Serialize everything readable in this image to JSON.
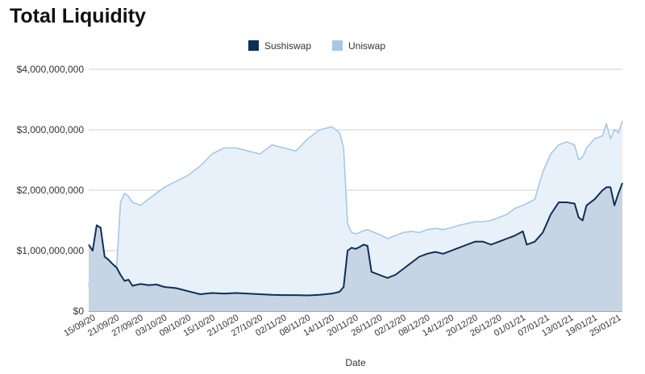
{
  "chart_data": {
    "type": "area",
    "title": "Total Liquidity",
    "xlabel": "Date",
    "ylabel": "",
    "ylim": [
      0,
      4000000000
    ],
    "yticks": [
      "$0",
      "$1,000,000,000",
      "$2,000,000,000",
      "$3,000,000,000",
      "$4,000,000,000"
    ],
    "grid": true,
    "legend": "top-center",
    "x_tick_labels": [
      "15/09/20",
      "21/09/20",
      "27/09/20",
      "03/10/20",
      "09/10/20",
      "15/10/20",
      "21/10/20",
      "27/10/20",
      "02/11/20",
      "08/11/20",
      "14/11/20",
      "20/11/20",
      "26/11/20",
      "02/12/20",
      "08/12/20",
      "14/12/20",
      "20/12/20",
      "26/12/20",
      "01/01/21",
      "07/01/21",
      "13/01/21",
      "19/01/21",
      "25/01/21"
    ],
    "x_start": "2020-09-14",
    "x_end": "2021-01-26",
    "series": [
      {
        "name": "Sushiswap",
        "color": "#0d2f57",
        "fill": "#c6d4e3",
        "points": [
          [
            "2020-09-14",
            1100000000
          ],
          [
            "2020-09-15",
            1000000000
          ],
          [
            "2020-09-16",
            1420000000
          ],
          [
            "2020-09-17",
            1380000000
          ],
          [
            "2020-09-18",
            900000000
          ],
          [
            "2020-09-19",
            850000000
          ],
          [
            "2020-09-20",
            780000000
          ],
          [
            "2020-09-21",
            720000000
          ],
          [
            "2020-09-22",
            600000000
          ],
          [
            "2020-09-23",
            500000000
          ],
          [
            "2020-09-24",
            520000000
          ],
          [
            "2020-09-25",
            420000000
          ],
          [
            "2020-09-27",
            450000000
          ],
          [
            "2020-09-29",
            430000000
          ],
          [
            "2020-10-01",
            440000000
          ],
          [
            "2020-10-03",
            400000000
          ],
          [
            "2020-10-06",
            380000000
          ],
          [
            "2020-10-09",
            330000000
          ],
          [
            "2020-10-12",
            280000000
          ],
          [
            "2020-10-15",
            300000000
          ],
          [
            "2020-10-18",
            290000000
          ],
          [
            "2020-10-21",
            300000000
          ],
          [
            "2020-10-24",
            290000000
          ],
          [
            "2020-10-27",
            280000000
          ],
          [
            "2020-10-30",
            270000000
          ],
          [
            "2020-11-02",
            265000000
          ],
          [
            "2020-11-05",
            265000000
          ],
          [
            "2020-11-08",
            260000000
          ],
          [
            "2020-11-11",
            270000000
          ],
          [
            "2020-11-14",
            290000000
          ],
          [
            "2020-11-16",
            320000000
          ],
          [
            "2020-11-17",
            400000000
          ],
          [
            "2020-11-18",
            1000000000
          ],
          [
            "2020-11-19",
            1050000000
          ],
          [
            "2020-11-20",
            1030000000
          ],
          [
            "2020-11-21",
            1060000000
          ],
          [
            "2020-11-22",
            1100000000
          ],
          [
            "2020-11-23",
            1080000000
          ],
          [
            "2020-11-24",
            650000000
          ],
          [
            "2020-11-26",
            600000000
          ],
          [
            "2020-11-28",
            550000000
          ],
          [
            "2020-11-30",
            600000000
          ],
          [
            "2020-12-02",
            700000000
          ],
          [
            "2020-12-04",
            800000000
          ],
          [
            "2020-12-06",
            900000000
          ],
          [
            "2020-12-08",
            950000000
          ],
          [
            "2020-12-10",
            980000000
          ],
          [
            "2020-12-12",
            950000000
          ],
          [
            "2020-12-14",
            1000000000
          ],
          [
            "2020-12-16",
            1050000000
          ],
          [
            "2020-12-18",
            1100000000
          ],
          [
            "2020-12-20",
            1150000000
          ],
          [
            "2020-12-22",
            1150000000
          ],
          [
            "2020-12-24",
            1100000000
          ],
          [
            "2020-12-26",
            1150000000
          ],
          [
            "2020-12-28",
            1200000000
          ],
          [
            "2020-12-30",
            1250000000
          ],
          [
            "2021-01-01",
            1320000000
          ],
          [
            "2021-01-02",
            1100000000
          ],
          [
            "2021-01-04",
            1150000000
          ],
          [
            "2021-01-06",
            1300000000
          ],
          [
            "2021-01-08",
            1600000000
          ],
          [
            "2021-01-10",
            1800000000
          ],
          [
            "2021-01-12",
            1800000000
          ],
          [
            "2021-01-14",
            1780000000
          ],
          [
            "2021-01-15",
            1550000000
          ],
          [
            "2021-01-16",
            1500000000
          ],
          [
            "2021-01-17",
            1750000000
          ],
          [
            "2021-01-19",
            1850000000
          ],
          [
            "2021-01-21",
            2000000000
          ],
          [
            "2021-01-22",
            2050000000
          ],
          [
            "2021-01-23",
            2050000000
          ],
          [
            "2021-01-24",
            1750000000
          ],
          [
            "2021-01-25",
            1950000000
          ],
          [
            "2021-01-26",
            2120000000
          ]
        ]
      },
      {
        "name": "Uniswap",
        "color": "#a6c8e6",
        "fill": "#e8f1fa",
        "points": [
          [
            "2020-09-14",
            400000000
          ],
          [
            "2020-09-15",
            1000000000
          ],
          [
            "2020-09-16",
            600000000
          ],
          [
            "2020-09-17",
            550000000
          ],
          [
            "2020-09-18",
            900000000
          ],
          [
            "2020-09-19",
            850000000
          ],
          [
            "2020-09-20",
            780000000
          ],
          [
            "2020-09-21",
            720000000
          ],
          [
            "2020-09-22",
            1800000000
          ],
          [
            "2020-09-23",
            1950000000
          ],
          [
            "2020-09-24",
            1900000000
          ],
          [
            "2020-09-25",
            1800000000
          ],
          [
            "2020-09-27",
            1750000000
          ],
          [
            "2020-09-29",
            1850000000
          ],
          [
            "2020-10-01",
            1950000000
          ],
          [
            "2020-10-03",
            2050000000
          ],
          [
            "2020-10-06",
            2150000000
          ],
          [
            "2020-10-09",
            2250000000
          ],
          [
            "2020-10-12",
            2400000000
          ],
          [
            "2020-10-15",
            2600000000
          ],
          [
            "2020-10-18",
            2700000000
          ],
          [
            "2020-10-21",
            2700000000
          ],
          [
            "2020-10-24",
            2650000000
          ],
          [
            "2020-10-27",
            2600000000
          ],
          [
            "2020-10-30",
            2750000000
          ],
          [
            "2020-11-02",
            2700000000
          ],
          [
            "2020-11-05",
            2650000000
          ],
          [
            "2020-11-08",
            2850000000
          ],
          [
            "2020-11-11",
            3000000000
          ],
          [
            "2020-11-14",
            3050000000
          ],
          [
            "2020-11-16",
            2950000000
          ],
          [
            "2020-11-17",
            2700000000
          ],
          [
            "2020-11-18",
            1450000000
          ],
          [
            "2020-11-19",
            1300000000
          ],
          [
            "2020-11-20",
            1280000000
          ],
          [
            "2020-11-21",
            1300000000
          ],
          [
            "2020-11-22",
            1330000000
          ],
          [
            "2020-11-23",
            1350000000
          ],
          [
            "2020-11-24",
            1320000000
          ],
          [
            "2020-11-26",
            1270000000
          ],
          [
            "2020-11-28",
            1200000000
          ],
          [
            "2020-11-30",
            1250000000
          ],
          [
            "2020-12-02",
            1300000000
          ],
          [
            "2020-12-04",
            1320000000
          ],
          [
            "2020-12-06",
            1300000000
          ],
          [
            "2020-12-08",
            1350000000
          ],
          [
            "2020-12-10",
            1370000000
          ],
          [
            "2020-12-12",
            1350000000
          ],
          [
            "2020-12-14",
            1380000000
          ],
          [
            "2020-12-16",
            1420000000
          ],
          [
            "2020-12-18",
            1450000000
          ],
          [
            "2020-12-20",
            1480000000
          ],
          [
            "2020-12-22",
            1480000000
          ],
          [
            "2020-12-24",
            1500000000
          ],
          [
            "2020-12-26",
            1550000000
          ],
          [
            "2020-12-28",
            1600000000
          ],
          [
            "2020-12-30",
            1700000000
          ],
          [
            "2021-01-01",
            1750000000
          ],
          [
            "2021-01-02",
            1780000000
          ],
          [
            "2021-01-04",
            1850000000
          ],
          [
            "2021-01-06",
            2300000000
          ],
          [
            "2021-01-08",
            2600000000
          ],
          [
            "2021-01-10",
            2750000000
          ],
          [
            "2021-01-12",
            2800000000
          ],
          [
            "2021-01-14",
            2750000000
          ],
          [
            "2021-01-15",
            2500000000
          ],
          [
            "2021-01-16",
            2550000000
          ],
          [
            "2021-01-17",
            2700000000
          ],
          [
            "2021-01-19",
            2850000000
          ],
          [
            "2021-01-21",
            2900000000
          ],
          [
            "2021-01-22",
            3100000000
          ],
          [
            "2021-01-23",
            2850000000
          ],
          [
            "2021-01-24",
            3000000000
          ],
          [
            "2021-01-25",
            2950000000
          ],
          [
            "2021-01-26",
            3150000000
          ]
        ]
      }
    ]
  }
}
